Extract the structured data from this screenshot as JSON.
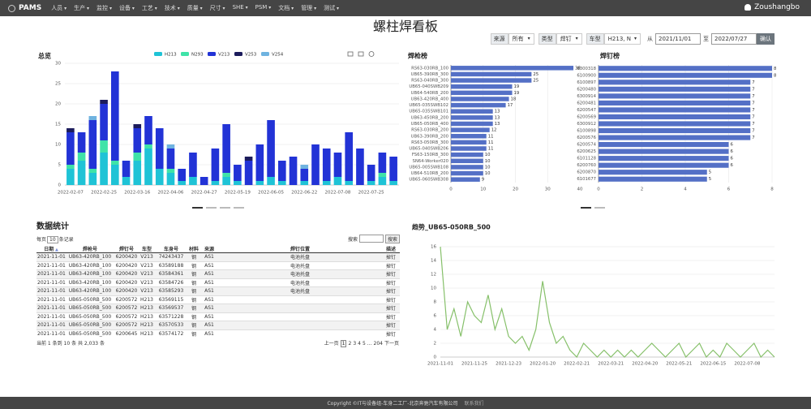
{
  "nav": {
    "brand": "PAMS",
    "menu": [
      "人员",
      "生产",
      "监控",
      "设备",
      "工艺",
      "技术",
      "质量",
      "尺寸",
      "SHE",
      "PSM",
      "文档",
      "管理",
      "测试"
    ],
    "user": "Zoushangbo"
  },
  "title": "螺柱焊看板",
  "filters": {
    "source_label": "来源",
    "source": "所有",
    "type_label": "类型",
    "type": "焊钉",
    "model_label": "车型",
    "model": "H213, N",
    "from_label": "从",
    "from": "2021/11/01",
    "to_label": "至",
    "to": "2022/07/27",
    "confirm": "确认"
  },
  "chart_data": [
    {
      "type": "bar",
      "stacked": true,
      "title": "总览",
      "legend": "top",
      "categories": [
        "2022-02-07",
        null,
        null,
        "2022-02-25",
        null,
        null,
        "2022-03-16",
        null,
        null,
        "2022-04-06",
        null,
        null,
        "2022-04-27",
        null,
        null,
        "2022-05-19",
        null,
        null,
        "2022-06-05",
        null,
        null,
        "2022-06-22",
        null,
        null,
        "2022-07-08",
        null,
        null,
        "2022-07-25",
        null,
        null
      ],
      "series": [
        {
          "name": "H213",
          "color": "#1fc3d6",
          "values": [
            4,
            6,
            3,
            8,
            5,
            2,
            6,
            9,
            4,
            3,
            1,
            2,
            0,
            1,
            2,
            1,
            0,
            1,
            2,
            1,
            0,
            1,
            0,
            1,
            2,
            1,
            0,
            1,
            2,
            1
          ]
        },
        {
          "name": "N293",
          "color": "#3fe3a8",
          "values": [
            1,
            2,
            1,
            3,
            1,
            0,
            2,
            1,
            0,
            1,
            0,
            0,
            0,
            0,
            1,
            0,
            0,
            0,
            0,
            0,
            0,
            0,
            0,
            0,
            0,
            0,
            0,
            0,
            1,
            0
          ]
        },
        {
          "name": "V213",
          "color": "#2233d6",
          "values": [
            8,
            5,
            12,
            9,
            22,
            4,
            6,
            7,
            10,
            5,
            3,
            6,
            2,
            8,
            12,
            4,
            6,
            9,
            14,
            5,
            7,
            3,
            10,
            8,
            6,
            12,
            9,
            4,
            5,
            6
          ]
        },
        {
          "name": "V253",
          "color": "#1c1c5c",
          "values": [
            1,
            0,
            0,
            1,
            0,
            0,
            1,
            0,
            0,
            0,
            0,
            0,
            0,
            0,
            0,
            0,
            1,
            0,
            0,
            0,
            0,
            0,
            0,
            0,
            0,
            0,
            0,
            0,
            0,
            0
          ]
        },
        {
          "name": "V254",
          "color": "#6fb3e0",
          "values": [
            0,
            0,
            1,
            0,
            0,
            0,
            0,
            0,
            0,
            1,
            0,
            0,
            0,
            0,
            0,
            0,
            0,
            0,
            0,
            0,
            0,
            1,
            0,
            0,
            0,
            0,
            0,
            0,
            0,
            0
          ]
        }
      ],
      "ylim": [
        0,
        30
      ],
      "yticks": [
        0,
        5,
        10,
        15,
        20,
        25,
        30
      ],
      "grid": true
    },
    {
      "type": "hbar",
      "title": "焊枪榜",
      "color": "#5470c6",
      "categories": [
        "RS63-030RB_100",
        "UB65-390RB_300",
        "RS63-040RB_300",
        "UB65-040SWB209",
        "UB64-540RB_200",
        "UB63-420RB_400",
        "UB65-035SWB102",
        "UB65-035SWB101",
        "UB63-450RB_200",
        "UB65-050RB_400",
        "RS63-030RB_200",
        "UB63-390RB_200",
        "RS63-050RB_300",
        "UB65-040SWB206",
        "FS63-150RB_300",
        "SN64-Worker020",
        "UB65-005SWB108",
        "UB64-510RB_200",
        "UB65-060SWB308"
      ],
      "values": [
        38,
        25,
        25,
        19,
        19,
        18,
        17,
        13,
        13,
        13,
        12,
        11,
        11,
        11,
        10,
        10,
        10,
        10,
        9
      ],
      "xlim": [
        0,
        40
      ],
      "xticks": [
        0,
        10,
        20,
        30,
        40
      ],
      "grid": true
    },
    {
      "type": "hbar",
      "title": "焊钉榜",
      "color": "#5470c6",
      "categories": [
        "6300318",
        "6100900",
        "6100897",
        "6200480",
        "6300914",
        "6200481",
        "6200547",
        "6200569",
        "6300912",
        "6100898",
        "6200576",
        "6200574",
        "6200625",
        "6101128",
        "6200760",
        "6200870",
        "6101677"
      ],
      "values": [
        8,
        8,
        7,
        7,
        7,
        7,
        7,
        7,
        7,
        7,
        7,
        6,
        6,
        6,
        6,
        5,
        5
      ],
      "xlim": [
        0,
        8
      ],
      "xticks": [
        0,
        2,
        4,
        6,
        8
      ],
      "grid": true
    },
    {
      "type": "line",
      "title": "趋势_UB65-050RB_500",
      "color": "#86c06a",
      "categories": [
        "2021-11-01",
        null,
        null,
        null,
        null,
        "2021-11-25",
        null,
        null,
        null,
        null,
        "2021-12-23",
        null,
        null,
        null,
        null,
        "2022-01-20",
        null,
        null,
        null,
        null,
        "2022-02-21",
        null,
        null,
        null,
        null,
        "2022-03-21",
        null,
        null,
        null,
        null,
        "2022-04-20",
        null,
        null,
        null,
        null,
        "2022-05-21",
        null,
        null,
        null,
        null,
        "2022-06-15",
        null,
        null,
        null,
        null,
        "2022-07-08",
        null,
        null,
        null,
        null
      ],
      "values": [
        16,
        4,
        7,
        3,
        8,
        6,
        5,
        9,
        4,
        7,
        3,
        2,
        3,
        1,
        4,
        11,
        5,
        2,
        3,
        1,
        0,
        2,
        1,
        0,
        1,
        0,
        1,
        0,
        1,
        0,
        1,
        2,
        1,
        0,
        1,
        2,
        0,
        1,
        2,
        0,
        1,
        0,
        2,
        1,
        0,
        1,
        2,
        0,
        1,
        0
      ],
      "ylim": [
        0,
        16
      ],
      "yticks": [
        0,
        2,
        4,
        6,
        8,
        10,
        12,
        14,
        16
      ],
      "grid": true
    }
  ],
  "table": {
    "title": "数据统计",
    "page_size_prefix": "每页",
    "page_size": "10",
    "page_size_suffix": "条记录",
    "search_label": "搜索",
    "search_button": "搜索",
    "columns": [
      "日期",
      "焊枪号",
      "焊钉号",
      "车型",
      "车身号",
      "材料",
      "来源",
      "焊钉位置",
      "描述"
    ],
    "rows": [
      [
        "2021-11-01",
        "UB63-420RB_100",
        "6200420",
        "V213",
        "74243437",
        "钢",
        "AS1",
        "电池托盘",
        "掉钉"
      ],
      [
        "2021-11-01",
        "UB63-420RB_100",
        "6200420",
        "V213",
        "63589188",
        "钢",
        "AS1",
        "电池托盘",
        "掉钉"
      ],
      [
        "2021-11-01",
        "UB63-420RB_100",
        "6200420",
        "V213",
        "63584361",
        "钢",
        "AS1",
        "电池托盘",
        "掉钉"
      ],
      [
        "2021-11-01",
        "UB63-420RB_100",
        "6200420",
        "V213",
        "63584726",
        "钢",
        "AS1",
        "电池托盘",
        "掉钉"
      ],
      [
        "2021-11-01",
        "UB63-420RB_100",
        "6200420",
        "V213",
        "63585293",
        "钢",
        "AS1",
        "电池托盘",
        "掉钉"
      ],
      [
        "2021-11-01",
        "UB65-050RB_500",
        "6200572",
        "H213",
        "63569115",
        "钢",
        "AS1",
        null,
        "掉钉"
      ],
      [
        "2021-11-01",
        "UB65-050RB_500",
        "6200572",
        "H213",
        "63569537",
        "钢",
        "AS1",
        null,
        "掉钉"
      ],
      [
        "2021-11-01",
        "UB65-050RB_500",
        "6200572",
        "H213",
        "63571228",
        "钢",
        "AS1",
        null,
        "掉钉"
      ],
      [
        "2021-11-01",
        "UB65-050RB_500",
        "6200572",
        "H213",
        "63570533",
        "钢",
        "AS1",
        null,
        "掉钉"
      ],
      [
        "2021-11-01",
        "UB65-050RB_500",
        "6200645",
        "H213",
        "63574172",
        "钢",
        "AS1",
        null,
        "掉钉"
      ]
    ],
    "info": "当前 1 条到 10 条 共 2,033 条",
    "pagination": [
      "上一页",
      "1",
      "2",
      "3",
      "4",
      "5",
      "...",
      "204",
      "下一页"
    ]
  },
  "footer": {
    "copyright": "Copyright ©IT与设备组-车身二工厂-北京奔驰汽车有限公司",
    "contact": "联系我们"
  }
}
